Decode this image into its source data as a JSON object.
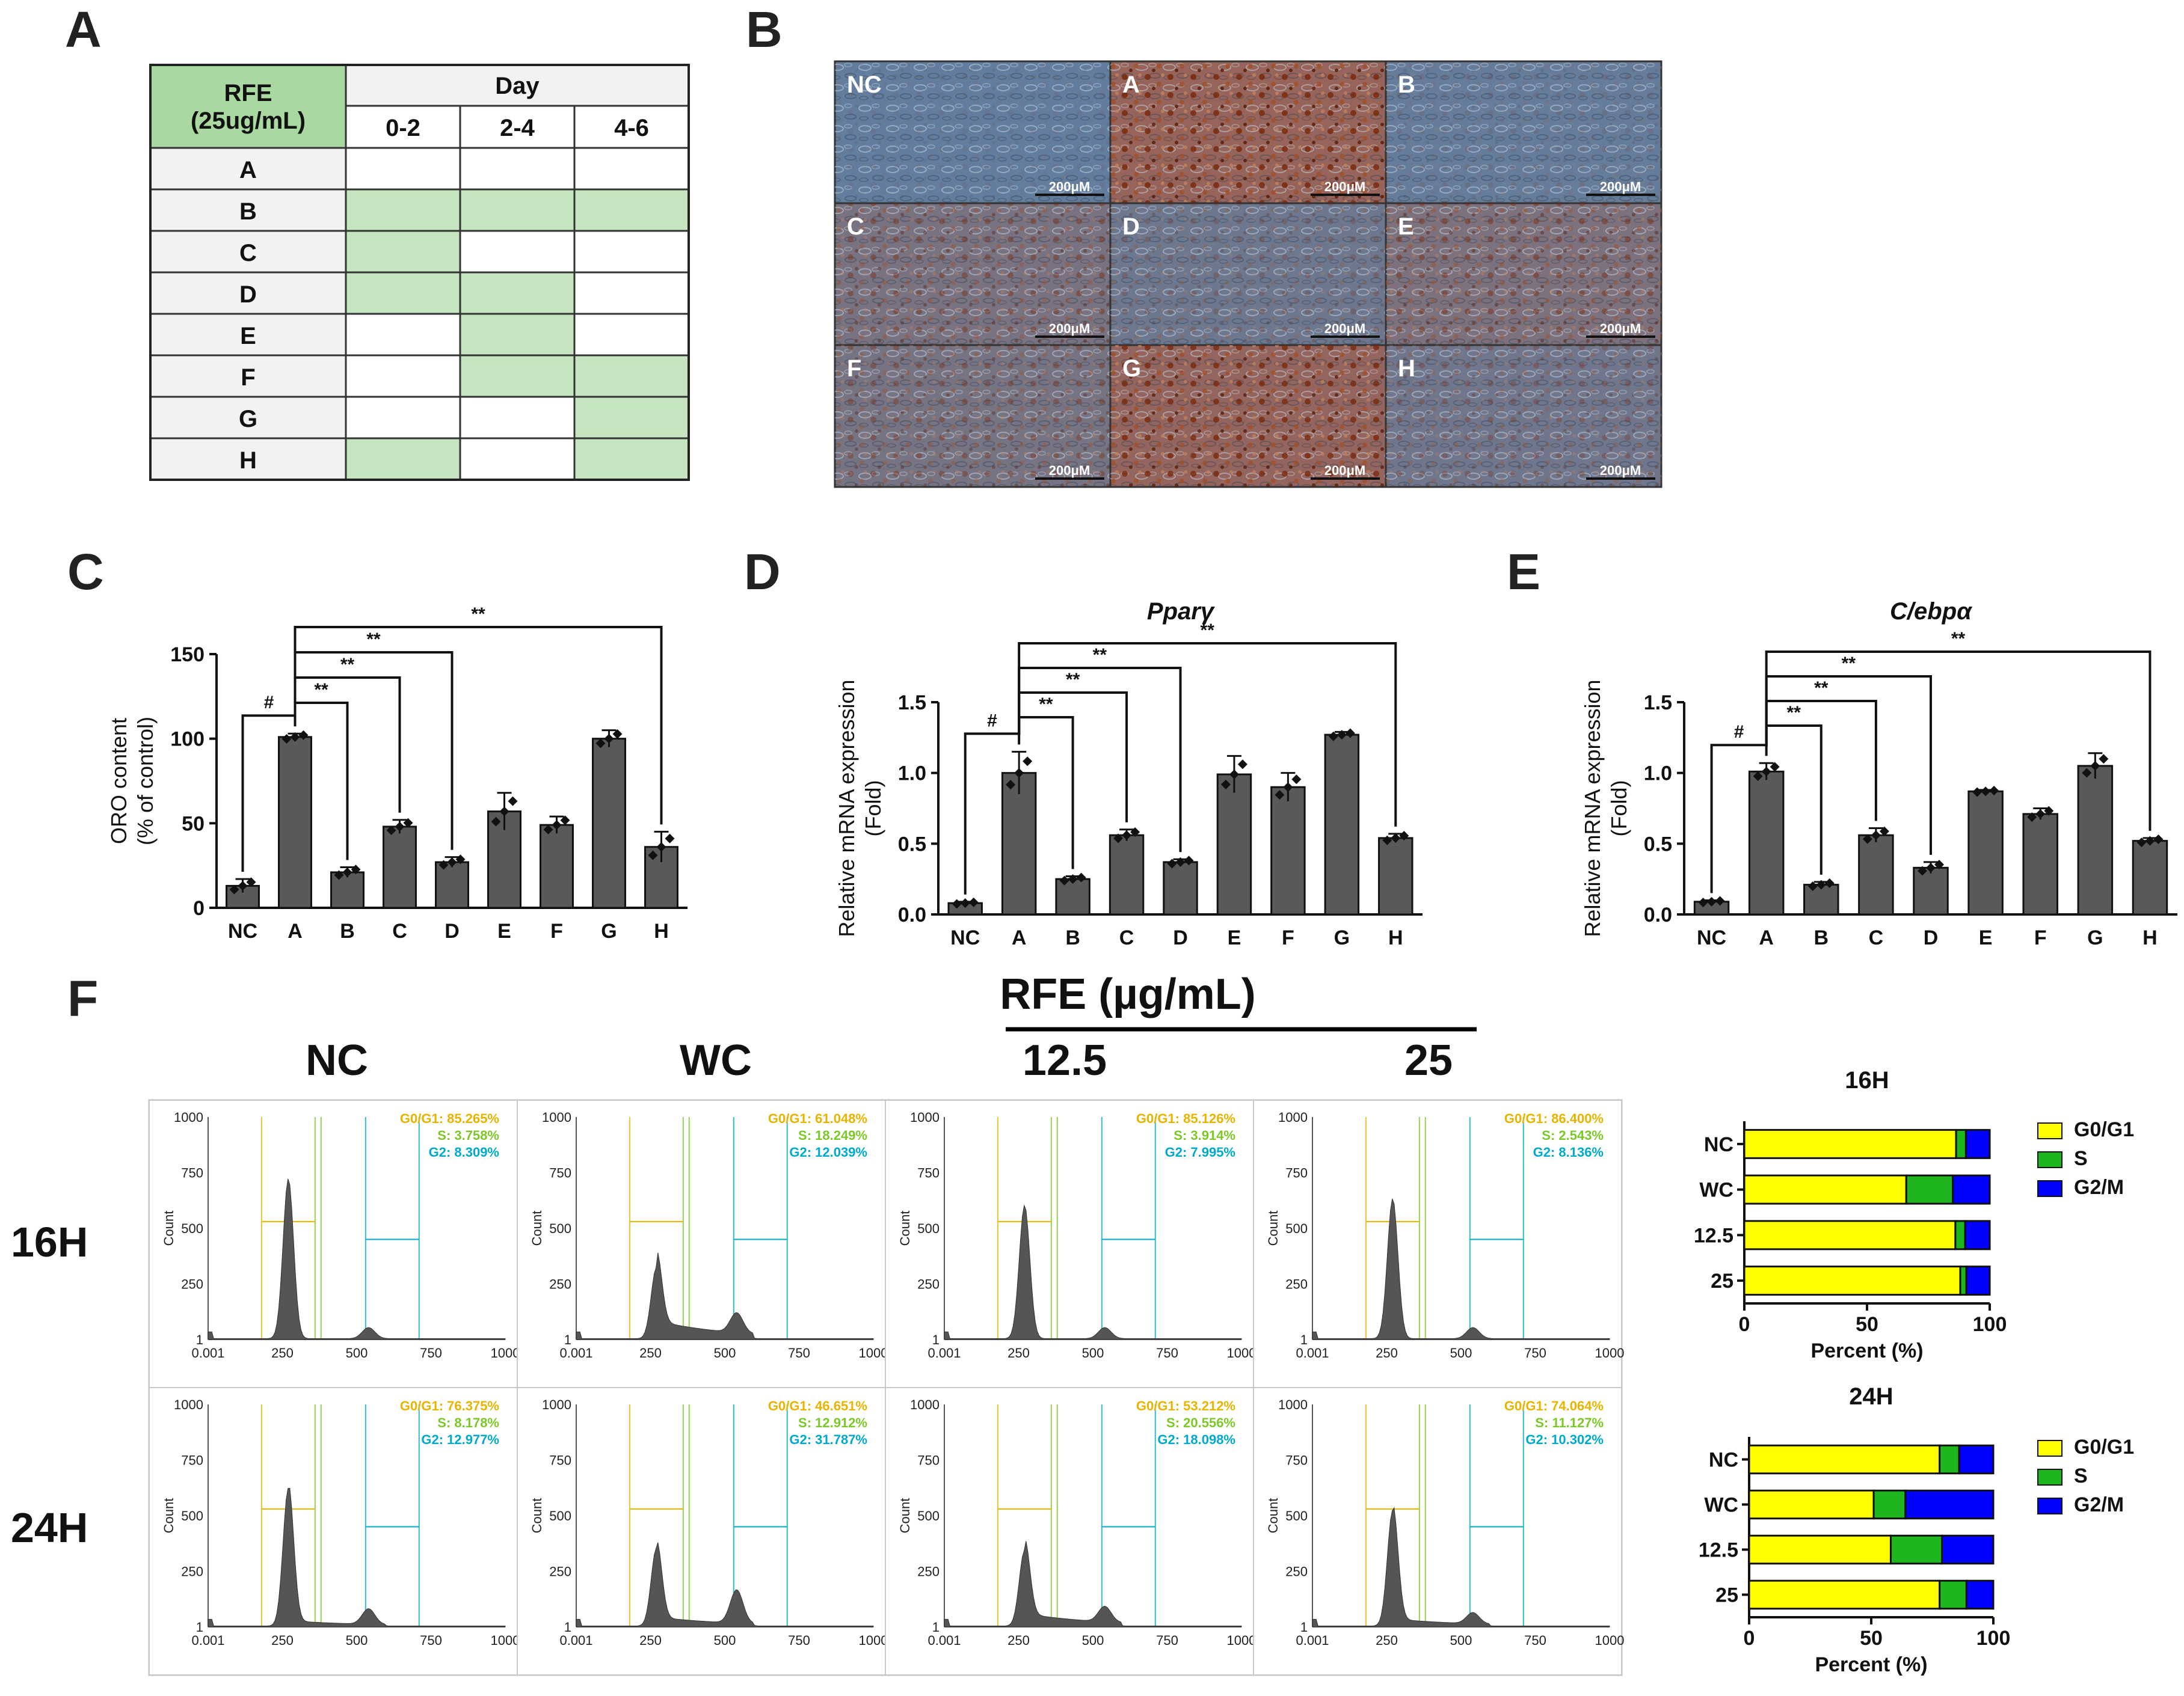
{
  "panels": {
    "A": "A",
    "B": "B",
    "C": "C",
    "D": "D",
    "E": "E",
    "F": "F"
  },
  "table": {
    "header_rfe_line1": "RFE",
    "header_rfe_line2": "(25ug/mL)",
    "header_day": "Day",
    "day_cols": [
      "0-2",
      "2-4",
      "4-6"
    ],
    "rows": [
      {
        "label": "A",
        "fill": [
          0,
          0,
          0
        ]
      },
      {
        "label": "B",
        "fill": [
          1,
          1,
          1
        ]
      },
      {
        "label": "C",
        "fill": [
          1,
          0,
          0
        ]
      },
      {
        "label": "D",
        "fill": [
          1,
          1,
          0
        ]
      },
      {
        "label": "E",
        "fill": [
          0,
          1,
          0
        ]
      },
      {
        "label": "F",
        "fill": [
          0,
          1,
          1
        ]
      },
      {
        "label": "G",
        "fill": [
          0,
          0,
          1
        ]
      },
      {
        "label": "H",
        "fill": [
          1,
          0,
          1
        ]
      }
    ],
    "fill_color": "#c6e4c0",
    "header_bg": "#a9d8a0",
    "label_bg": "#f2f2f2"
  },
  "micrographs": {
    "labels": [
      "NC",
      "A",
      "B",
      "C",
      "D",
      "E",
      "F",
      "G",
      "H"
    ],
    "scale_bar": "200μM",
    "stain_level": [
      0.1,
      1.0,
      0.15,
      0.5,
      0.3,
      0.55,
      0.45,
      0.95,
      0.35
    ]
  },
  "chart_data": [
    {
      "type": "bar",
      "panel": "C",
      "title": "",
      "ylabel_line1": "ORO content",
      "ylabel_line2": "(% of control)",
      "categories": [
        "NC",
        "A",
        "B",
        "C",
        "D",
        "E",
        "F",
        "G",
        "H"
      ],
      "values": [
        13,
        101,
        21,
        48,
        27,
        57,
        49,
        100,
        36
      ],
      "errors": [
        4,
        2,
        3,
        4,
        3,
        11,
        5,
        5,
        9
      ],
      "ylim": [
        0,
        150
      ],
      "yticks": [
        "0",
        "50",
        "100",
        "150"
      ],
      "significance": [
        {
          "from": "NC",
          "to": "A",
          "label": "#"
        },
        {
          "from": "A",
          "to": "B",
          "label": "**"
        },
        {
          "from": "A",
          "to": "C",
          "label": "**"
        },
        {
          "from": "A",
          "to": "D",
          "label": "**"
        },
        {
          "from": "A",
          "to": "H",
          "label": "**"
        }
      ]
    },
    {
      "type": "bar",
      "panel": "D",
      "title": "Pparγ",
      "ylabel_line1": "Relative mRNA expression",
      "ylabel_line2": "(Fold)",
      "categories": [
        "NC",
        "A",
        "B",
        "C",
        "D",
        "E",
        "F",
        "G",
        "H"
      ],
      "values": [
        0.08,
        1.0,
        0.25,
        0.56,
        0.37,
        0.99,
        0.9,
        1.27,
        0.54
      ],
      "errors": [
        0.01,
        0.15,
        0.02,
        0.04,
        0.02,
        0.13,
        0.1,
        0.02,
        0.03
      ],
      "ylim": [
        0,
        1.5
      ],
      "yticks": [
        "0.0",
        "0.5",
        "1.0",
        "1.5"
      ],
      "significance": [
        {
          "from": "NC",
          "to": "A",
          "label": "#"
        },
        {
          "from": "A",
          "to": "B",
          "label": "**"
        },
        {
          "from": "A",
          "to": "C",
          "label": "**"
        },
        {
          "from": "A",
          "to": "D",
          "label": "**"
        },
        {
          "from": "A",
          "to": "H",
          "label": "**"
        }
      ]
    },
    {
      "type": "bar",
      "panel": "E",
      "title": "C/ebpα",
      "ylabel_line1": "Relative mRNA expression",
      "ylabel_line2": "(Fold)",
      "categories": [
        "NC",
        "A",
        "B",
        "C",
        "D",
        "E",
        "F",
        "G",
        "H"
      ],
      "values": [
        0.09,
        1.01,
        0.21,
        0.56,
        0.33,
        0.87,
        0.71,
        1.05,
        0.52
      ],
      "errors": [
        0.01,
        0.06,
        0.02,
        0.05,
        0.04,
        0.01,
        0.04,
        0.09,
        0.02
      ],
      "ylim": [
        0,
        1.5
      ],
      "yticks": [
        "0.0",
        "0.5",
        "1.0",
        "1.5"
      ],
      "significance": [
        {
          "from": "NC",
          "to": "A",
          "label": "#"
        },
        {
          "from": "A",
          "to": "B",
          "label": "**"
        },
        {
          "from": "A",
          "to": "C",
          "label": "**"
        },
        {
          "from": "A",
          "to": "D",
          "label": "**"
        },
        {
          "from": "A",
          "to": "H",
          "label": "**"
        }
      ]
    },
    {
      "type": "bar",
      "subtype": "stacked-horizontal",
      "panel": "F",
      "title": "16H",
      "xlabel": "Percent (%)",
      "categories": [
        "NC",
        "WC",
        "12.5",
        "25"
      ],
      "series": [
        {
          "name": "G0/G1",
          "color": "#ffff00",
          "values": [
            86.3,
            66,
            86,
            88
          ]
        },
        {
          "name": "S",
          "color": "#1fb51f",
          "values": [
            4,
            19,
            4,
            2.5
          ]
        },
        {
          "name": "G2/M",
          "color": "#0000ff",
          "values": [
            9.7,
            15,
            10,
            9.5
          ]
        }
      ],
      "xlim": [
        0,
        100
      ],
      "xticks": [
        "0",
        "50",
        "100"
      ]
    },
    {
      "type": "bar",
      "subtype": "stacked-horizontal",
      "panel": "F",
      "title": "24H",
      "xlabel": "Percent (%)",
      "categories": [
        "NC",
        "WC",
        "12.5",
        "25"
      ],
      "series": [
        {
          "name": "G0/G1",
          "color": "#ffff00",
          "values": [
            78,
            51,
            58,
            78
          ]
        },
        {
          "name": "S",
          "color": "#1fb51f",
          "values": [
            8,
            13,
            21,
            11
          ]
        },
        {
          "name": "G2/M",
          "color": "#0000ff",
          "values": [
            14,
            36,
            21,
            11
          ]
        }
      ],
      "xlim": [
        0,
        100
      ],
      "xticks": [
        "0",
        "50",
        "100"
      ]
    }
  ],
  "cell_cycle": {
    "rfe_label": "RFE (µg/mL)",
    "col_labels": [
      "NC",
      "WC",
      "12.5",
      "25"
    ],
    "row_labels": [
      "16H",
      "24H"
    ],
    "axis_y_ticks": [
      "1000",
      "750",
      "500",
      "250",
      "1"
    ],
    "axis_x_ticks": [
      "0.001",
      "250",
      "500",
      "750",
      "1000"
    ],
    "axis_y_label": "Count",
    "ann_colors": {
      "g1": "#e8b400",
      "s": "#7cc828",
      "g2": "#00aacc"
    },
    "histograms": [
      {
        "row": 0,
        "col": 0,
        "peak1": 0.72,
        "peak2": 0.05,
        "spread": 0,
        "g1": "G0/G1: 85.265%",
        "s": "S: 3.758%",
        "g2": "G2: 8.309%"
      },
      {
        "row": 0,
        "col": 1,
        "peak1": 0.32,
        "peak2": 0.09,
        "spread": 1,
        "g1": "G0/G1: 61.048%",
        "s": "S: 18.249%",
        "g2": "G2: 12.039%"
      },
      {
        "row": 0,
        "col": 2,
        "peak1": 0.6,
        "peak2": 0.05,
        "spread": 0,
        "g1": "G0/G1: 85.126%",
        "s": "S: 3.914%",
        "g2": "G2: 7.995%"
      },
      {
        "row": 0,
        "col": 3,
        "peak1": 0.63,
        "peak2": 0.05,
        "spread": 0,
        "g1": "G0/G1: 86.400%",
        "s": "S: 2.543%",
        "g2": "G2: 8.136%"
      },
      {
        "row": 1,
        "col": 0,
        "peak1": 0.62,
        "peak2": 0.07,
        "spread": 0.3,
        "g1": "G0/G1: 76.375%",
        "s": "S: 8.178%",
        "g2": "G2: 12.977%"
      },
      {
        "row": 1,
        "col": 1,
        "peak1": 0.35,
        "peak2": 0.15,
        "spread": 0.5,
        "g1": "G0/G1: 46.651%",
        "s": "S: 12.912%",
        "g2": "G2: 31.787%"
      },
      {
        "row": 1,
        "col": 2,
        "peak1": 0.34,
        "peak2": 0.07,
        "spread": 0.7,
        "g1": "G0/G1: 53.212%",
        "s": "S: 20.556%",
        "g2": "G2: 18.098%"
      },
      {
        "row": 1,
        "col": 3,
        "peak1": 0.52,
        "peak2": 0.05,
        "spread": 0.4,
        "g1": "G0/G1: 74.064%",
        "s": "S: 11.127%",
        "g2": "G2: 10.302%"
      }
    ]
  }
}
